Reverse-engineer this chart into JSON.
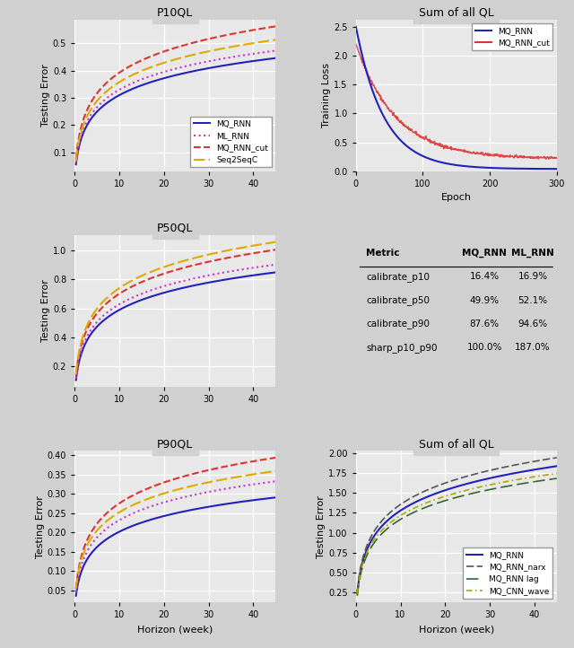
{
  "bg_color": "#d0d0d0",
  "plot_bg": "#e8e8e8",
  "grid_color": "white",
  "colors": {
    "MQ_RNN": "#2222bb",
    "ML_RNN": "#cc33cc",
    "MQ_RNN_cut": "#dd3333",
    "Seq2SeqC": "#ddaa00",
    "MQ_RNN_narx": "#555555",
    "MQ_RNN_lag": "#336633",
    "MQ_CNN_wave": "#aaaa00"
  },
  "table_headers": [
    "Metric",
    "MQ_RNN",
    "ML_RNN"
  ],
  "table_rows": [
    [
      "calibrate_p10",
      "16.4%",
      "16.9%"
    ],
    [
      "calibrate_p50",
      "49.9%",
      "52.1%"
    ],
    [
      "calibrate_p90",
      "87.6%",
      "94.6%"
    ],
    [
      "sharp_p10_p90",
      "100.0%",
      "187.0%"
    ]
  ],
  "horizon_max": 45,
  "epoch_max": 300,
  "p10_scales": [
    0.092,
    0.097,
    0.115,
    0.105
  ],
  "p10_offsets": [
    0.0,
    0.003,
    0.005,
    0.004
  ],
  "p50_scales": [
    0.175,
    0.185,
    0.205,
    0.215
  ],
  "p50_offsets": [
    0.0,
    0.005,
    0.01,
    0.015
  ],
  "p90_scales": [
    0.06,
    0.068,
    0.08,
    0.072
  ],
  "p90_offsets": [
    0.0,
    0.003,
    0.006,
    0.01
  ],
  "sq_scales": [
    0.38,
    0.4,
    0.35,
    0.36
  ],
  "sq_offsets": [
    0.0,
    0.01,
    -0.01,
    0.005
  ]
}
